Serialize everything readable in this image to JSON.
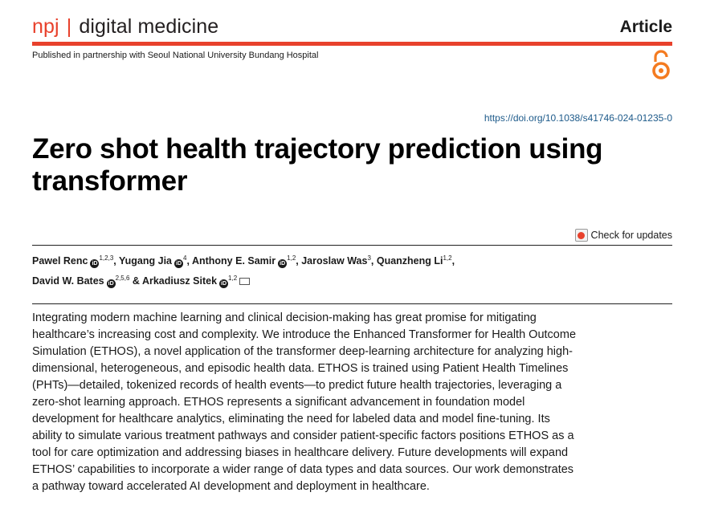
{
  "header": {
    "journal_prefix": "npj",
    "journal_separator": "|",
    "journal_name": "digital medicine",
    "article_type": "Article",
    "partnership": "Published in partnership with Seoul National University Bundang Hospital",
    "open_access_icon": "open-access-icon"
  },
  "doi": "https://doi.org/10.1038/s41746-024-01235-0",
  "title": "Zero shot health trajectory prediction using transformer",
  "check_updates": "Check for updates",
  "authors": [
    {
      "name": "Pawel Renc",
      "orcid": true,
      "affil": "1,2,3",
      "sep": ", "
    },
    {
      "name": "Yugang Jia",
      "orcid": true,
      "affil": "4",
      "sep": ", "
    },
    {
      "name": "Anthony E. Samir",
      "orcid": true,
      "affil": "1,2",
      "sep": ", "
    },
    {
      "name": "Jaroslaw Was",
      "orcid": false,
      "affil": "3",
      "sep": ", "
    },
    {
      "name": "Quanzheng Li",
      "orcid": false,
      "affil": "1,2",
      "sep": ","
    },
    {
      "name": "David W. Bates",
      "orcid": true,
      "affil": "2,5,6",
      "sep": " & "
    },
    {
      "name": "Arkadiusz Sitek",
      "orcid": true,
      "affil": "1,2",
      "sep": "",
      "email": true
    }
  ],
  "abstract": "Integrating modern machine learning and clinical decision-making has great promise for mitigating healthcare’s increasing cost and complexity. We introduce the Enhanced Transformer for Health Outcome Simulation (ETHOS), a novel application of the transformer deep-learning architecture for analyzing high-dimensional, heterogeneous, and episodic health data. ETHOS is trained using Patient Health Timelines (PHTs)—detailed, tokenized records of health events—to predict future health trajectories, leveraging a zero-shot learning approach. ETHOS represents a significant advancement in foundation model development for healthcare analytics, eliminating the need for labeled data and model fine-tuning. Its ability to simulate various treatment pathways and consider patient-specific factors positions ETHOS as a tool for care optimization and addressing biases in healthcare delivery. Future developments will expand ETHOS’ capabilities to incorporate a wider range of data types and data sources. Our work demonstrates a pathway toward accelerated AI development and deployment in healthcare.",
  "colors": {
    "brand": "#e8412c",
    "doi_link": "#1d5a8a"
  }
}
